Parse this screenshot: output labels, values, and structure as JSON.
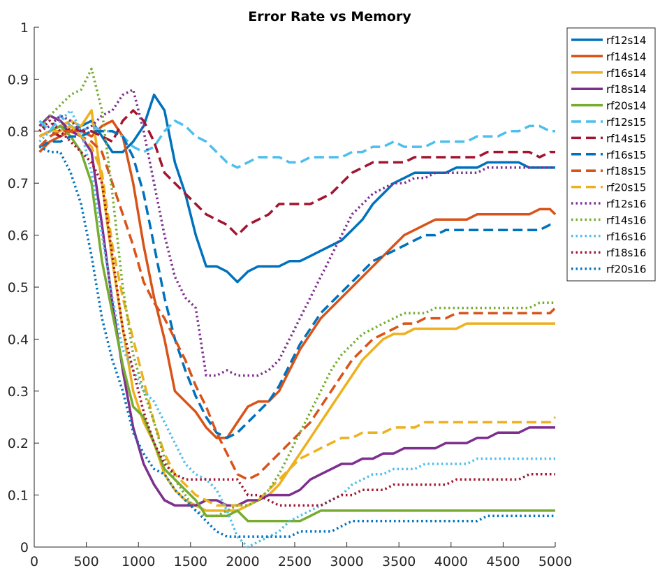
{
  "chart_data": {
    "type": "line",
    "title": "Error Rate vs Memory",
    "xlabel": "",
    "ylabel": "",
    "xlim": [
      0,
      5000
    ],
    "ylim": [
      0,
      1
    ],
    "xticks": [
      "0",
      "500",
      "1000",
      "1500",
      "2000",
      "2500",
      "3000",
      "3500",
      "4000",
      "4500",
      "5000"
    ],
    "yticks": [
      "0",
      "0.1",
      "0.2",
      "0.3",
      "0.4",
      "0.5",
      "0.6",
      "0.7",
      "0.8",
      "0.9",
      "1"
    ],
    "grid": false,
    "legend_position": "top-right",
    "x": [
      50,
      150,
      250,
      350,
      450,
      550,
      650,
      750,
      850,
      950,
      1050,
      1150,
      1250,
      1350,
      1450,
      1550,
      1650,
      1750,
      1850,
      1950,
      2050,
      2150,
      2250,
      2350,
      2450,
      2550,
      2650,
      2750,
      2850,
      2950,
      3050,
      3150,
      3250,
      3350,
      3450,
      3550,
      3650,
      3750,
      3850,
      3950,
      4050,
      4150,
      4250,
      4350,
      4450,
      4550,
      4650,
      4750,
      4850,
      4950,
      5000
    ],
    "series": [
      {
        "name": "rf12s14",
        "color": "#0072BD",
        "style": "solid",
        "values": [
          0.79,
          0.8,
          0.81,
          0.8,
          0.81,
          0.82,
          0.79,
          0.76,
          0.76,
          0.78,
          0.81,
          0.87,
          0.84,
          0.74,
          0.68,
          0.6,
          0.54,
          0.54,
          0.53,
          0.51,
          0.53,
          0.54,
          0.54,
          0.54,
          0.55,
          0.55,
          0.56,
          0.57,
          0.58,
          0.59,
          0.61,
          0.63,
          0.66,
          0.68,
          0.7,
          0.71,
          0.72,
          0.72,
          0.72,
          0.72,
          0.73,
          0.73,
          0.73,
          0.74,
          0.74,
          0.74,
          0.74,
          0.73,
          0.73,
          0.73,
          0.73
        ]
      },
      {
        "name": "rf14s14",
        "color": "#D95319",
        "style": "solid",
        "values": [
          0.76,
          0.78,
          0.79,
          0.8,
          0.8,
          0.79,
          0.81,
          0.82,
          0.79,
          0.7,
          0.58,
          0.48,
          0.4,
          0.3,
          0.28,
          0.26,
          0.23,
          0.21,
          0.21,
          0.24,
          0.27,
          0.28,
          0.28,
          0.3,
          0.34,
          0.38,
          0.41,
          0.44,
          0.46,
          0.48,
          0.5,
          0.52,
          0.54,
          0.56,
          0.58,
          0.6,
          0.61,
          0.62,
          0.63,
          0.63,
          0.63,
          0.63,
          0.64,
          0.64,
          0.64,
          0.64,
          0.64,
          0.64,
          0.65,
          0.65,
          0.64
        ]
      },
      {
        "name": "rf16s14",
        "color": "#EDB120",
        "style": "solid",
        "values": [
          0.79,
          0.8,
          0.81,
          0.82,
          0.81,
          0.84,
          0.7,
          0.55,
          0.42,
          0.3,
          0.24,
          0.2,
          0.14,
          0.11,
          0.09,
          0.08,
          0.07,
          0.07,
          0.07,
          0.07,
          0.08,
          0.09,
          0.1,
          0.12,
          0.15,
          0.18,
          0.21,
          0.24,
          0.27,
          0.3,
          0.33,
          0.36,
          0.38,
          0.4,
          0.41,
          0.41,
          0.42,
          0.42,
          0.42,
          0.42,
          0.42,
          0.43,
          0.43,
          0.43,
          0.43,
          0.43,
          0.43,
          0.43,
          0.43,
          0.43,
          0.43
        ]
      },
      {
        "name": "rf18s14",
        "color": "#7E2F8E",
        "style": "solid",
        "values": [
          0.81,
          0.83,
          0.82,
          0.8,
          0.79,
          0.76,
          0.62,
          0.47,
          0.34,
          0.23,
          0.16,
          0.12,
          0.09,
          0.08,
          0.08,
          0.08,
          0.09,
          0.09,
          0.08,
          0.08,
          0.09,
          0.09,
          0.1,
          0.1,
          0.1,
          0.11,
          0.13,
          0.14,
          0.15,
          0.16,
          0.16,
          0.17,
          0.17,
          0.18,
          0.18,
          0.19,
          0.19,
          0.19,
          0.19,
          0.2,
          0.2,
          0.2,
          0.21,
          0.21,
          0.22,
          0.22,
          0.22,
          0.23,
          0.23,
          0.23,
          0.23
        ]
      },
      {
        "name": "rf20s14",
        "color": "#77AC30",
        "style": "solid",
        "values": [
          0.79,
          0.8,
          0.81,
          0.79,
          0.76,
          0.7,
          0.55,
          0.45,
          0.35,
          0.27,
          0.25,
          0.2,
          0.15,
          0.13,
          0.11,
          0.09,
          0.06,
          0.06,
          0.06,
          0.07,
          0.05,
          0.05,
          0.05,
          0.05,
          0.05,
          0.05,
          0.06,
          0.07,
          0.07,
          0.07,
          0.07,
          0.07,
          0.07,
          0.07,
          0.07,
          0.07,
          0.07,
          0.07,
          0.07,
          0.07,
          0.07,
          0.07,
          0.07,
          0.07,
          0.07,
          0.07,
          0.07,
          0.07,
          0.07,
          0.07,
          0.07
        ]
      },
      {
        "name": "rf12s15",
        "color": "#4DBEEE",
        "style": "dashed",
        "values": [
          0.82,
          0.8,
          0.83,
          0.81,
          0.8,
          0.81,
          0.8,
          0.8,
          0.79,
          0.77,
          0.76,
          0.77,
          0.8,
          0.82,
          0.81,
          0.79,
          0.78,
          0.76,
          0.74,
          0.73,
          0.74,
          0.75,
          0.75,
          0.75,
          0.74,
          0.74,
          0.75,
          0.75,
          0.75,
          0.75,
          0.76,
          0.76,
          0.77,
          0.77,
          0.78,
          0.77,
          0.77,
          0.77,
          0.78,
          0.78,
          0.78,
          0.78,
          0.79,
          0.79,
          0.79,
          0.8,
          0.8,
          0.81,
          0.81,
          0.8,
          0.8
        ]
      },
      {
        "name": "rf14s15",
        "color": "#A2142F",
        "style": "dashed",
        "values": [
          0.79,
          0.8,
          0.79,
          0.81,
          0.8,
          0.8,
          0.79,
          0.78,
          0.82,
          0.84,
          0.82,
          0.78,
          0.72,
          0.7,
          0.68,
          0.66,
          0.64,
          0.63,
          0.62,
          0.6,
          0.62,
          0.63,
          0.64,
          0.66,
          0.66,
          0.66,
          0.66,
          0.67,
          0.68,
          0.7,
          0.72,
          0.73,
          0.74,
          0.74,
          0.74,
          0.74,
          0.75,
          0.75,
          0.75,
          0.75,
          0.75,
          0.75,
          0.75,
          0.76,
          0.76,
          0.76,
          0.76,
          0.76,
          0.75,
          0.76,
          0.76
        ]
      },
      {
        "name": "rf16s15",
        "color": "#0072BD",
        "style": "dashed",
        "values": [
          0.77,
          0.78,
          0.78,
          0.79,
          0.79,
          0.8,
          0.8,
          0.8,
          0.79,
          0.75,
          0.68,
          0.58,
          0.48,
          0.4,
          0.34,
          0.29,
          0.25,
          0.22,
          0.21,
          0.22,
          0.24,
          0.26,
          0.28,
          0.31,
          0.35,
          0.39,
          0.42,
          0.45,
          0.47,
          0.49,
          0.51,
          0.53,
          0.55,
          0.56,
          0.57,
          0.58,
          0.59,
          0.6,
          0.6,
          0.61,
          0.61,
          0.61,
          0.61,
          0.61,
          0.61,
          0.61,
          0.61,
          0.61,
          0.61,
          0.62,
          0.62
        ]
      },
      {
        "name": "rf18s15",
        "color": "#D95319",
        "style": "dashed",
        "values": [
          0.77,
          0.79,
          0.8,
          0.8,
          0.79,
          0.78,
          0.76,
          0.7,
          0.64,
          0.58,
          0.51,
          0.47,
          0.44,
          0.4,
          0.36,
          0.31,
          0.27,
          0.22,
          0.18,
          0.14,
          0.13,
          0.14,
          0.16,
          0.18,
          0.2,
          0.22,
          0.24,
          0.27,
          0.3,
          0.33,
          0.36,
          0.38,
          0.4,
          0.41,
          0.42,
          0.43,
          0.43,
          0.44,
          0.44,
          0.44,
          0.45,
          0.45,
          0.45,
          0.45,
          0.45,
          0.45,
          0.45,
          0.45,
          0.45,
          0.45,
          0.46
        ]
      },
      {
        "name": "rf20s15",
        "color": "#EDB120",
        "style": "dashed",
        "values": [
          0.79,
          0.8,
          0.8,
          0.81,
          0.79,
          0.77,
          0.72,
          0.58,
          0.48,
          0.4,
          0.32,
          0.24,
          0.18,
          0.14,
          0.12,
          0.1,
          0.09,
          0.08,
          0.08,
          0.08,
          0.08,
          0.09,
          0.11,
          0.13,
          0.15,
          0.17,
          0.18,
          0.19,
          0.2,
          0.21,
          0.21,
          0.22,
          0.22,
          0.22,
          0.23,
          0.23,
          0.23,
          0.24,
          0.24,
          0.24,
          0.24,
          0.24,
          0.24,
          0.24,
          0.24,
          0.24,
          0.24,
          0.24,
          0.24,
          0.24,
          0.25
        ]
      },
      {
        "name": "rf12s16",
        "color": "#7E2F8E",
        "style": "dotted",
        "values": [
          0.8,
          0.81,
          0.83,
          0.82,
          0.8,
          0.81,
          0.83,
          0.84,
          0.87,
          0.88,
          0.8,
          0.7,
          0.6,
          0.52,
          0.48,
          0.46,
          0.33,
          0.33,
          0.34,
          0.33,
          0.33,
          0.33,
          0.34,
          0.36,
          0.4,
          0.44,
          0.48,
          0.52,
          0.56,
          0.6,
          0.64,
          0.66,
          0.68,
          0.69,
          0.7,
          0.7,
          0.71,
          0.71,
          0.72,
          0.72,
          0.72,
          0.72,
          0.72,
          0.73,
          0.73,
          0.73,
          0.73,
          0.73,
          0.73,
          0.73,
          0.73
        ]
      },
      {
        "name": "rf14s16",
        "color": "#77AC30",
        "style": "dotted",
        "values": [
          0.8,
          0.83,
          0.85,
          0.87,
          0.88,
          0.92,
          0.84,
          0.68,
          0.5,
          0.37,
          0.3,
          0.24,
          0.17,
          0.13,
          0.1,
          0.07,
          0.06,
          0.06,
          0.07,
          0.08,
          0.08,
          0.09,
          0.11,
          0.14,
          0.18,
          0.22,
          0.26,
          0.3,
          0.34,
          0.37,
          0.39,
          0.41,
          0.42,
          0.43,
          0.44,
          0.45,
          0.45,
          0.45,
          0.46,
          0.46,
          0.46,
          0.46,
          0.46,
          0.46,
          0.46,
          0.46,
          0.46,
          0.46,
          0.47,
          0.47,
          0.47
        ]
      },
      {
        "name": "rf16s16",
        "color": "#4DBEEE",
        "style": "dotted",
        "values": [
          0.78,
          0.8,
          0.82,
          0.84,
          0.8,
          0.72,
          0.6,
          0.48,
          0.38,
          0.34,
          0.3,
          0.28,
          0.24,
          0.2,
          0.16,
          0.14,
          0.13,
          0.11,
          0.07,
          0.02,
          0.0,
          0.01,
          0.02,
          0.03,
          0.05,
          0.06,
          0.07,
          0.08,
          0.09,
          0.1,
          0.12,
          0.13,
          0.14,
          0.14,
          0.15,
          0.15,
          0.15,
          0.16,
          0.16,
          0.16,
          0.16,
          0.16,
          0.17,
          0.17,
          0.17,
          0.17,
          0.17,
          0.17,
          0.17,
          0.17,
          0.17
        ]
      },
      {
        "name": "rf18s16",
        "color": "#A2142F",
        "style": "dotted",
        "values": [
          0.8,
          0.82,
          0.8,
          0.78,
          0.76,
          0.74,
          0.7,
          0.56,
          0.42,
          0.34,
          0.26,
          0.2,
          0.16,
          0.14,
          0.13,
          0.13,
          0.13,
          0.13,
          0.13,
          0.13,
          0.1,
          0.1,
          0.09,
          0.08,
          0.08,
          0.08,
          0.08,
          0.08,
          0.09,
          0.1,
          0.1,
          0.11,
          0.11,
          0.11,
          0.12,
          0.12,
          0.12,
          0.12,
          0.12,
          0.12,
          0.13,
          0.13,
          0.13,
          0.13,
          0.13,
          0.13,
          0.13,
          0.14,
          0.14,
          0.14,
          0.14
        ]
      },
      {
        "name": "rf20s16",
        "color": "#0072BD",
        "style": "dotted",
        "values": [
          0.77,
          0.76,
          0.76,
          0.72,
          0.66,
          0.56,
          0.44,
          0.36,
          0.3,
          0.22,
          0.18,
          0.15,
          0.14,
          0.11,
          0.09,
          0.07,
          0.05,
          0.03,
          0.02,
          0.02,
          0.02,
          0.02,
          0.02,
          0.02,
          0.02,
          0.03,
          0.03,
          0.03,
          0.03,
          0.04,
          0.05,
          0.05,
          0.05,
          0.05,
          0.05,
          0.05,
          0.05,
          0.05,
          0.05,
          0.05,
          0.05,
          0.05,
          0.05,
          0.06,
          0.06,
          0.06,
          0.06,
          0.06,
          0.06,
          0.06,
          0.06
        ]
      }
    ]
  }
}
